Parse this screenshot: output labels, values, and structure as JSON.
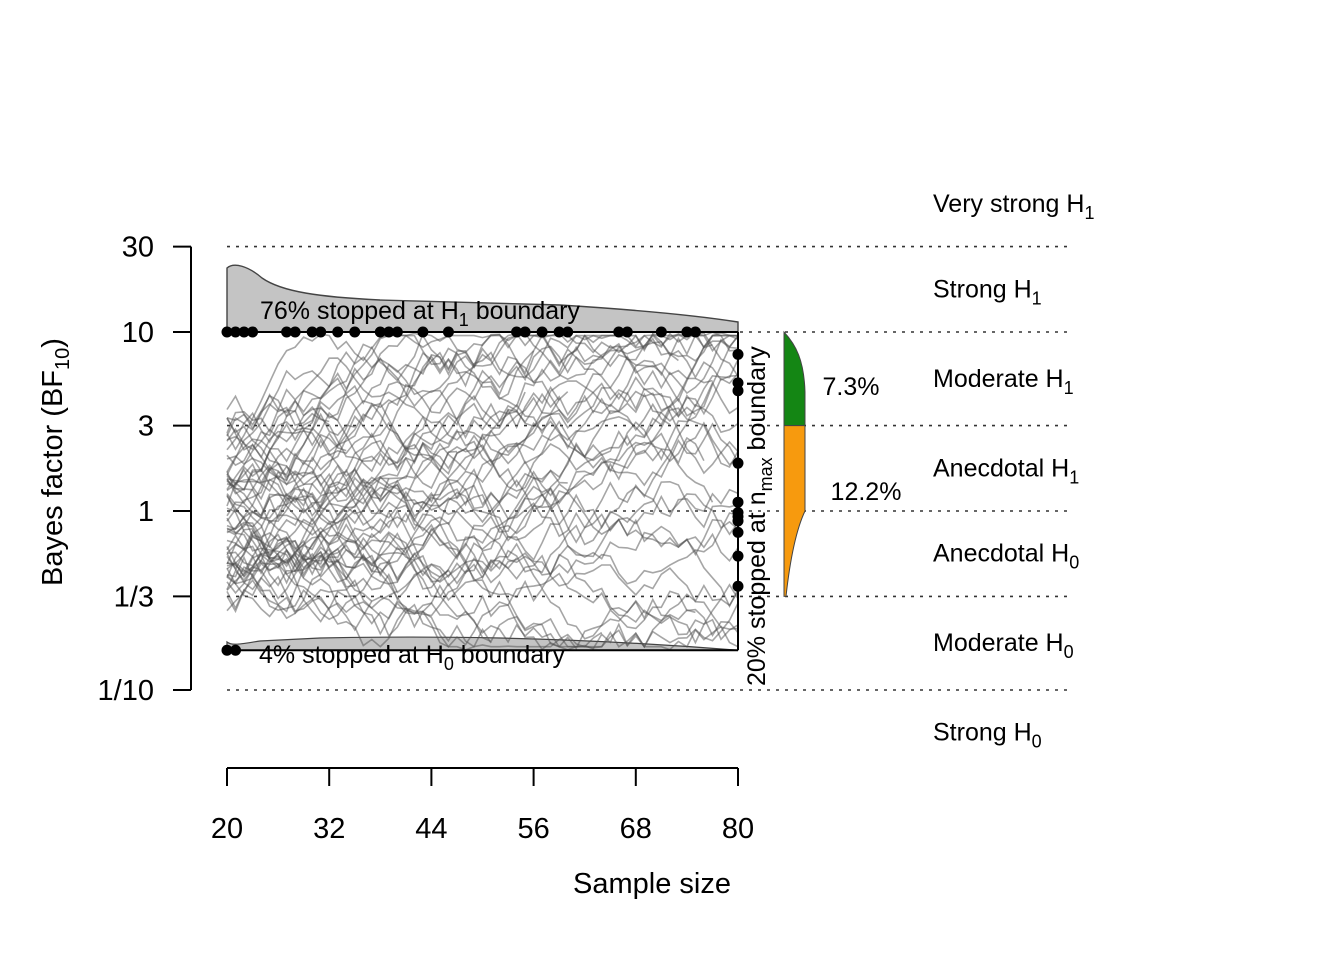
{
  "chart_data": {
    "type": "line",
    "xlabel": "Sample size",
    "ylabel": "Bayes factor",
    "ylabel_sub": "10",
    "ylabel_main": "BF",
    "x_ticks": [
      20,
      32,
      44,
      56,
      68,
      80
    ],
    "xlim": [
      20,
      80
    ],
    "y_scale": "log",
    "y_ticks": [
      {
        "value": 0.1,
        "label": "1/10"
      },
      {
        "value": 0.3333,
        "label": "1/3"
      },
      {
        "value": 1,
        "label": "1"
      },
      {
        "value": 3,
        "label": "3"
      },
      {
        "value": 10,
        "label": "10"
      },
      {
        "value": 30,
        "label": "30"
      }
    ],
    "ylim": [
      0.1,
      30
    ],
    "reference_lines": [
      0.1,
      0.3333,
      1,
      3,
      10,
      30
    ],
    "boundaries": {
      "upper": 10,
      "lower": 0.1667,
      "n_max": 80
    },
    "evidence_categories": [
      {
        "main": "Very strong H",
        "sub": "1",
        "y": 52
      },
      {
        "main": "Strong H",
        "sub": "1",
        "y": 17.3
      },
      {
        "main": "Moderate H",
        "sub": "1",
        "y": 5.48
      },
      {
        "main": "Anecdotal H",
        "sub": "1",
        "y": 1.73
      },
      {
        "main": "Anecdotal H",
        "sub": "0",
        "y": 0.577
      },
      {
        "main": "Moderate H",
        "sub": "0",
        "y": 0.1826
      },
      {
        "main": "Strong H",
        "sub": "0",
        "y": 0.0577
      }
    ],
    "annotations": {
      "upper": {
        "pre": "76% stopped at H",
        "sub": "1",
        "post": " boundary"
      },
      "lower": {
        "pre": "4% stopped at H",
        "sub": "0",
        "post": " boundary"
      },
      "nmax": {
        "pre": "20% stopped at n",
        "sub": "max",
        "post": " boundary"
      }
    },
    "nmax_distribution": [
      {
        "label": "7.3%",
        "from": 3,
        "to": 10,
        "color": "#148614"
      },
      {
        "label": "12.2%",
        "from": 0.3333,
        "to": 3,
        "color": "#f79a0e"
      }
    ],
    "stopped_upper_n": [
      20,
      21,
      22,
      23,
      27,
      28,
      30,
      31,
      33,
      35,
      38,
      39,
      40,
      43,
      46,
      54,
      55,
      57,
      59,
      60,
      66,
      67,
      71,
      74,
      75
    ],
    "stopped_lower_n": [
      20,
      21
    ],
    "nmax_final_bf": [
      7.5,
      5.2,
      4.7,
      1.85,
      1.12,
      0.98,
      0.93,
      0.88,
      0.76,
      0.56,
      0.38
    ],
    "colors": {
      "paths": "#4d4d4d",
      "density": "#c4c4c4",
      "moderate": "#148614",
      "anecdotal": "#f79a0e"
    }
  }
}
